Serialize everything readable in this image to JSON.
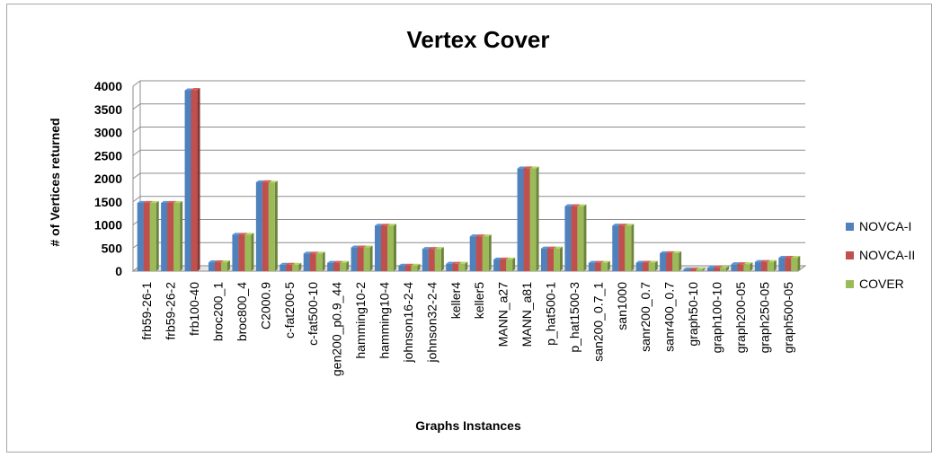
{
  "chart_data": {
    "type": "bar",
    "title": "Vertex Cover",
    "xlabel": "Graphs Instances",
    "ylabel": "# of Vertices returned",
    "ylim": [
      0,
      4000
    ],
    "yticks": [
      0,
      500,
      1000,
      1500,
      2000,
      2500,
      3000,
      3500,
      4000
    ],
    "grid": true,
    "legend_position": "right",
    "categories": [
      "frb59-26-1",
      "frb59-26-2",
      "frb100-40",
      "broc200_1",
      "broc800_4",
      "C2000.9",
      "c-fat200-5",
      "c-fat500-10",
      "gen200_p0.9_44",
      "hamming10-2",
      "hamming10-4",
      "johnson16-2-4",
      "johnson32-2-4",
      "keller4",
      "keller5",
      "MANN_a27",
      "MANN_a81",
      "p_hat500-1",
      "p_hat1500-3",
      "san200_0.7_1",
      "san1000",
      "sanr200_0.7",
      "sanr400_0.7",
      "graph50-10",
      "graph100-10",
      "graph200-05",
      "graph250-05",
      "graph500-05"
    ],
    "series": [
      {
        "name": "NOVCA-I",
        "color": "#4f81bd",
        "values": [
          1476,
          1476,
          3911,
          192,
          788,
          1922,
          140,
          380,
          180,
          512,
          984,
          120,
          480,
          160,
          752,
          252,
          2221,
          491,
          1405,
          180,
          986,
          183,
          388,
          38,
          70,
          150,
          200,
          290
        ]
      },
      {
        "name": "NOVCA-II",
        "color": "#c0504d",
        "values": [
          1476,
          1476,
          3920,
          192,
          788,
          1925,
          140,
          380,
          180,
          512,
          984,
          120,
          480,
          160,
          752,
          252,
          2225,
          491,
          1405,
          180,
          986,
          183,
          388,
          38,
          70,
          150,
          200,
          290
        ]
      },
      {
        "name": "COVER",
        "color": "#9bbb59",
        "values": [
          1475,
          1475,
          0,
          192,
          787,
          1912,
          140,
          380,
          180,
          512,
          984,
          120,
          480,
          160,
          752,
          252,
          2221,
          490,
          1404,
          180,
          984,
          183,
          388,
          38,
          70,
          150,
          200,
          290
        ]
      }
    ]
  }
}
